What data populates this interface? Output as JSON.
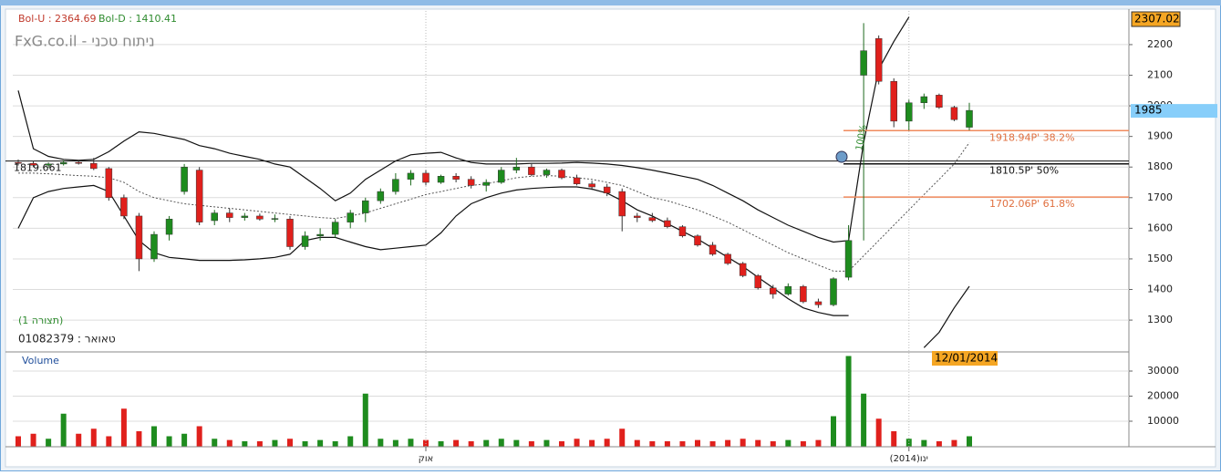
{
  "header": {
    "bol_u": "Bol-U : 2364.69",
    "bol_d": "Bol-D : 1410.41",
    "site": "FxG.co.il - ניתוח טכני",
    "layout": "(תצורה 1)",
    "symbol": "טאואר : 01082379"
  },
  "chart_data": [
    {
      "type": "candlestick",
      "ylim": [
        1199,
        2310
      ],
      "yticks": [
        1300,
        1400,
        1500,
        1600,
        1700,
        1800,
        1900,
        2000,
        2100,
        2200
      ],
      "grid": true,
      "up_color": "#1e8c1e",
      "down_color": "#e0201c",
      "open": [
        1815,
        1812,
        1806,
        1810,
        1815,
        1812,
        1795,
        1700,
        1640,
        1500,
        1580,
        1720,
        1790,
        1625,
        1650,
        1635,
        1640,
        1630,
        1630,
        1540,
        1575,
        1580,
        1620,
        1650,
        1690,
        1720,
        1760,
        1780,
        1750,
        1770,
        1760,
        1740,
        1750,
        1790,
        1800,
        1775,
        1790,
        1765,
        1745,
        1735,
        1720,
        1640,
        1635,
        1625,
        1605,
        1575,
        1545,
        1515,
        1485,
        1445,
        1405,
        1385,
        1410,
        1360,
        1350,
        1440,
        2100,
        2220,
        2080,
        1950,
        2010,
        2035,
        1995,
        1930
      ],
      "high": [
        1825,
        1820,
        1815,
        1822,
        1820,
        1830,
        1800,
        1710,
        1650,
        1590,
        1640,
        1810,
        1800,
        1660,
        1665,
        1650,
        1648,
        1645,
        1640,
        1590,
        1600,
        1630,
        1660,
        1700,
        1730,
        1780,
        1790,
        1790,
        1775,
        1780,
        1770,
        1760,
        1800,
        1830,
        1810,
        1795,
        1795,
        1775,
        1755,
        1745,
        1730,
        1650,
        1650,
        1635,
        1610,
        1580,
        1555,
        1520,
        1490,
        1450,
        1415,
        1420,
        1415,
        1370,
        1440,
        1610,
        2270,
        2230,
        2090,
        2020,
        2040,
        2040,
        2000,
        2010
      ],
      "low": [
        1805,
        1800,
        1798,
        1805,
        1808,
        1790,
        1690,
        1630,
        1460,
        1490,
        1560,
        1710,
        1610,
        1610,
        1620,
        1625,
        1625,
        1620,
        1530,
        1530,
        1560,
        1570,
        1600,
        1620,
        1680,
        1710,
        1740,
        1740,
        1745,
        1750,
        1730,
        1720,
        1745,
        1780,
        1770,
        1765,
        1760,
        1740,
        1725,
        1705,
        1590,
        1620,
        1620,
        1600,
        1570,
        1540,
        1510,
        1480,
        1440,
        1400,
        1370,
        1380,
        1355,
        1340,
        1345,
        1430,
        1560,
        2070,
        1930,
        1920,
        1990,
        1990,
        1950,
        1920
      ],
      "close": [
        1812,
        1806,
        1810,
        1815,
        1812,
        1795,
        1700,
        1640,
        1500,
        1580,
        1630,
        1800,
        1620,
        1650,
        1635,
        1640,
        1630,
        1632,
        1540,
        1575,
        1580,
        1620,
        1650,
        1690,
        1720,
        1760,
        1780,
        1750,
        1770,
        1760,
        1740,
        1750,
        1790,
        1800,
        1775,
        1790,
        1765,
        1745,
        1735,
        1715,
        1640,
        1635,
        1625,
        1605,
        1575,
        1545,
        1515,
        1485,
        1445,
        1405,
        1385,
        1410,
        1360,
        1350,
        1435,
        1560,
        2180,
        2080,
        1950,
        2010,
        2030,
        1995,
        1955,
        1985
      ],
      "overlays": [
        {
          "color": "#111111",
          "dash": false,
          "values": [
            2050,
            1860,
            1835,
            1825,
            1822,
            1825,
            1850,
            1885,
            1915,
            1910,
            1900,
            1890,
            1870,
            1860,
            1845,
            1835,
            1825,
            1810,
            1800,
            1765,
            1730,
            1690,
            1715,
            1760,
            1790,
            1820,
            1840,
            1845,
            1848,
            1830,
            1815,
            1810,
            1810,
            1810,
            1812,
            1812,
            1813,
            1815,
            1813,
            1810,
            1805,
            1798,
            1790,
            1780,
            1770,
            1760,
            1740,
            1715,
            1690,
            1660,
            1635,
            1610,
            1590,
            1570,
            1555,
            1560,
            1880,
            2120,
            2210,
            2290,
            null,
            null,
            null,
            null
          ]
        },
        {
          "color": "#555555",
          "dash": true,
          "values": [
            1780,
            1780,
            1778,
            1775,
            1772,
            1770,
            1765,
            1750,
            1720,
            1700,
            1690,
            1680,
            1675,
            1670,
            1665,
            1660,
            1655,
            1650,
            1645,
            1640,
            1635,
            1632,
            1640,
            1650,
            1665,
            1680,
            1695,
            1710,
            1720,
            1730,
            1740,
            1745,
            1755,
            1765,
            1770,
            1772,
            1770,
            1765,
            1760,
            1750,
            1740,
            1720,
            1700,
            1690,
            1675,
            1660,
            1640,
            1620,
            1595,
            1570,
            1545,
            1520,
            1500,
            1480,
            1460,
            1460,
            1510,
            1560,
            1610,
            1660,
            1710,
            1760,
            1810,
            1880
          ]
        },
        {
          "color": "#111111",
          "dash": false,
          "values": [
            1600,
            1700,
            1720,
            1730,
            1735,
            1740,
            1720,
            1640,
            1560,
            1520,
            1505,
            1500,
            1495,
            1495,
            1495,
            1497,
            1500,
            1505,
            1515,
            1560,
            1570,
            1570,
            1555,
            1540,
            1530,
            1535,
            1540,
            1545,
            1585,
            1640,
            1680,
            1700,
            1715,
            1725,
            1730,
            1733,
            1735,
            1735,
            1728,
            1715,
            1690,
            1660,
            1640,
            1615,
            1590,
            1565,
            1535,
            1505,
            1475,
            1440,
            1405,
            1370,
            1340,
            1325,
            1315,
            1315,
            null,
            null,
            null,
            null,
            1210,
            1260,
            1340,
            1410.41
          ]
        }
      ],
      "reference_lines": [
        1819.661
      ],
      "fib_levels": [
        {
          "value": 1918.94,
          "label": "1918.94P' 38.2%",
          "color": "#f08a5d"
        },
        {
          "value": 1810.5,
          "label": "1810.5P' 50%",
          "color": "#111111"
        },
        {
          "value": 1702.06,
          "label": "1702.06P' 61.8%",
          "color": "#f08a5d"
        }
      ],
      "fib_top_label": "100%",
      "high_marker": 2307.02,
      "last_price": 1985,
      "date_marker": "12/01/2014"
    },
    {
      "type": "bar",
      "title": "Volume",
      "ylim": [
        0,
        37270
      ],
      "yticks": [
        10000,
        20000,
        30000
      ],
      "categories": [
        null,
        null,
        null,
        null,
        null,
        null,
        null,
        null,
        null,
        null,
        null,
        null,
        null,
        null,
        null,
        null,
        null,
        null,
        null,
        null,
        null,
        null,
        null,
        null,
        null,
        null,
        null,
        "אוק",
        null,
        null,
        null,
        null,
        null,
        null,
        null,
        null,
        null,
        null,
        null,
        null,
        null,
        null,
        null,
        null,
        null,
        null,
        null,
        null,
        null,
        null,
        null,
        null,
        null,
        null,
        null,
        null,
        null,
        null,
        null,
        "ינו(2014)",
        null,
        null,
        null,
        null
      ],
      "values": [
        4000,
        5000,
        3000,
        13000,
        5000,
        7000,
        4000,
        15000,
        6000,
        8000,
        4000,
        5000,
        8000,
        3000,
        2500,
        2000,
        2000,
        2500,
        3000,
        2000,
        2500,
        2000,
        4000,
        21000,
        3000,
        2500,
        3000,
        2500,
        2000,
        2500,
        2000,
        2500,
        3000,
        2500,
        2000,
        2500,
        2000,
        3000,
        2500,
        3000,
        7000,
        2500,
        2000,
        2000,
        2000,
        2500,
        2000,
        2500,
        3000,
        2500,
        2000,
        2500,
        2000,
        2500,
        12000,
        36000,
        21000,
        11000,
        6000,
        3000,
        2500,
        2000,
        2500,
        4000
      ]
    }
  ]
}
